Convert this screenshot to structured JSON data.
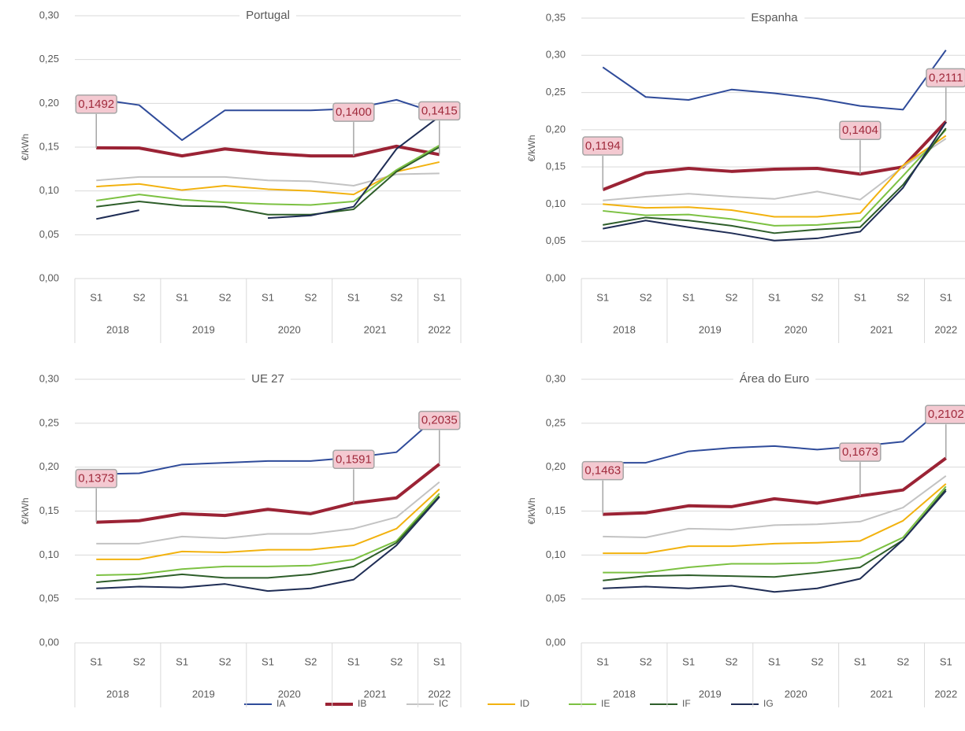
{
  "chart_data": [
    {
      "type": "line",
      "title": "Portugal",
      "y_label": "€/kWh",
      "categories": [
        "S1",
        "S2",
        "S1",
        "S2",
        "S1",
        "S2",
        "S1",
        "S2",
        "S1"
      ],
      "category_groups": [
        {
          "label": "2018",
          "count": 2
        },
        {
          "label": "2019",
          "count": 2
        },
        {
          "label": "2020",
          "count": 2
        },
        {
          "label": "2021",
          "count": 2
        },
        {
          "label": "2022",
          "count": 1
        }
      ],
      "ylim": [
        0,
        0.3
      ],
      "yticks": [
        {
          "value": 0,
          "label": "0,00"
        },
        {
          "value": 0.05,
          "label": "0,05"
        },
        {
          "value": 0.1,
          "label": "0,10"
        },
        {
          "value": 0.15,
          "label": "0,15"
        },
        {
          "value": 0.2,
          "label": "0,20"
        },
        {
          "value": 0.25,
          "label": "0,25"
        },
        {
          "value": 0.3,
          "label": "0,30"
        }
      ],
      "grid": true,
      "legend": "bottom",
      "series": [
        {
          "name": "IA",
          "color": "#2f4b9a",
          "width": 2,
          "values": [
            0.205,
            0.198,
            0.158,
            0.192,
            0.192,
            0.192,
            0.194,
            0.204,
            0.188
          ]
        },
        {
          "name": "IB",
          "color": "#9b2335",
          "width": 4,
          "values": [
            0.1492,
            0.149,
            0.14,
            0.148,
            0.143,
            0.14,
            0.14,
            0.151,
            0.1415
          ],
          "value_labels": [
            "0,1492",
            null,
            null,
            null,
            null,
            null,
            "0,1400",
            null,
            "0,1415"
          ]
        },
        {
          "name": "IC",
          "color": "#c3c3c3",
          "width": 2,
          "values": [
            0.112,
            0.116,
            0.116,
            0.116,
            0.112,
            0.111,
            0.106,
            0.119,
            0.12
          ]
        },
        {
          "name": "ID",
          "color": "#f2b20f",
          "width": 2,
          "values": [
            0.105,
            0.108,
            0.101,
            0.106,
            0.102,
            0.1,
            0.096,
            0.122,
            0.133
          ]
        },
        {
          "name": "IE",
          "color": "#7cc142",
          "width": 2,
          "values": [
            0.089,
            0.096,
            0.09,
            0.087,
            0.085,
            0.084,
            0.088,
            0.124,
            0.152
          ]
        },
        {
          "name": "IF",
          "color": "#2e5e2a",
          "width": 2,
          "values": [
            0.082,
            0.088,
            0.083,
            0.082,
            0.073,
            0.073,
            0.079,
            0.122,
            0.15
          ]
        },
        {
          "name": "IG",
          "color": "#1f2d55",
          "width": 2,
          "values": [
            0.068,
            0.078,
            null,
            null,
            0.069,
            0.072,
            0.082,
            0.148,
            0.185
          ]
        }
      ]
    },
    {
      "type": "line",
      "title": "Espanha",
      "y_label": "€/kWh",
      "categories": [
        "S1",
        "S2",
        "S1",
        "S2",
        "S1",
        "S2",
        "S1",
        "S2",
        "S1"
      ],
      "category_groups": [
        {
          "label": "2018",
          "count": 2
        },
        {
          "label": "2019",
          "count": 2
        },
        {
          "label": "2020",
          "count": 2
        },
        {
          "label": "2021",
          "count": 2
        },
        {
          "label": "2022",
          "count": 1
        }
      ],
      "ylim": [
        0,
        0.35
      ],
      "yticks": [
        {
          "value": 0,
          "label": "0,00"
        },
        {
          "value": 0.05,
          "label": "0,05"
        },
        {
          "value": 0.1,
          "label": "0,10"
        },
        {
          "value": 0.15,
          "label": "0,15"
        },
        {
          "value": 0.2,
          "label": "0,20"
        },
        {
          "value": 0.25,
          "label": "0,25"
        },
        {
          "value": 0.3,
          "label": "0,30"
        },
        {
          "value": 0.35,
          "label": "0,35"
        }
      ],
      "grid": true,
      "series": [
        {
          "name": "IA",
          "color": "#2f4b9a",
          "width": 2,
          "values": [
            0.284,
            0.244,
            0.24,
            0.254,
            0.249,
            0.242,
            0.232,
            0.227,
            0.307
          ]
        },
        {
          "name": "IB",
          "color": "#9b2335",
          "width": 4,
          "values": [
            0.1194,
            0.142,
            0.148,
            0.144,
            0.147,
            0.148,
            0.1404,
            0.15,
            0.2111
          ],
          "value_labels": [
            "0,1194",
            null,
            null,
            null,
            null,
            null,
            "0,1404",
            null,
            "0,2111"
          ]
        },
        {
          "name": "IC",
          "color": "#c3c3c3",
          "width": 2,
          "values": [
            0.105,
            0.11,
            0.114,
            0.11,
            0.107,
            0.117,
            0.106,
            0.15,
            0.188
          ]
        },
        {
          "name": "ID",
          "color": "#f2b20f",
          "width": 2,
          "values": [
            0.1,
            0.095,
            0.096,
            0.092,
            0.083,
            0.083,
            0.088,
            0.152,
            0.192
          ]
        },
        {
          "name": "IE",
          "color": "#7cc142",
          "width": 2,
          "values": [
            0.091,
            0.085,
            0.086,
            0.08,
            0.071,
            0.072,
            0.077,
            0.138,
            0.2
          ]
        },
        {
          "name": "IF",
          "color": "#2e5e2a",
          "width": 2,
          "values": [
            0.072,
            0.082,
            0.078,
            0.071,
            0.061,
            0.066,
            0.069,
            0.126,
            0.202
          ]
        },
        {
          "name": "IG",
          "color": "#1f2d55",
          "width": 2,
          "values": [
            0.067,
            0.078,
            0.069,
            0.061,
            0.051,
            0.054,
            0.063,
            0.122,
            0.21
          ]
        }
      ]
    },
    {
      "type": "line",
      "title": "UE 27",
      "y_label": "€/kWh",
      "categories": [
        "S1",
        "S2",
        "S1",
        "S2",
        "S1",
        "S2",
        "S1",
        "S2",
        "S1"
      ],
      "category_groups": [
        {
          "label": "2018",
          "count": 2
        },
        {
          "label": "2019",
          "count": 2
        },
        {
          "label": "2020",
          "count": 2
        },
        {
          "label": "2021",
          "count": 2
        },
        {
          "label": "2022",
          "count": 1
        }
      ],
      "ylim": [
        0,
        0.3
      ],
      "yticks": [
        {
          "value": 0,
          "label": "0,00"
        },
        {
          "value": 0.05,
          "label": "0,05"
        },
        {
          "value": 0.1,
          "label": "0,10"
        },
        {
          "value": 0.15,
          "label": "0,15"
        },
        {
          "value": 0.2,
          "label": "0,20"
        },
        {
          "value": 0.25,
          "label": "0,25"
        },
        {
          "value": 0.3,
          "label": "0,30"
        }
      ],
      "grid": true,
      "series": [
        {
          "name": "IA",
          "color": "#2f4b9a",
          "width": 2,
          "values": [
            0.192,
            0.193,
            0.203,
            0.205,
            0.207,
            0.207,
            0.211,
            0.217,
            0.26
          ]
        },
        {
          "name": "IB",
          "color": "#9b2335",
          "width": 4,
          "values": [
            0.1373,
            0.139,
            0.147,
            0.145,
            0.152,
            0.147,
            0.1591,
            0.165,
            0.2035
          ],
          "value_labels": [
            "0,1373",
            null,
            null,
            null,
            null,
            null,
            "0,1591",
            null,
            "0,2035"
          ]
        },
        {
          "name": "IC",
          "color": "#c3c3c3",
          "width": 2,
          "values": [
            0.113,
            0.113,
            0.121,
            0.119,
            0.124,
            0.124,
            0.13,
            0.143,
            0.183
          ]
        },
        {
          "name": "ID",
          "color": "#f2b20f",
          "width": 2,
          "values": [
            0.095,
            0.095,
            0.104,
            0.103,
            0.106,
            0.106,
            0.111,
            0.13,
            0.175
          ]
        },
        {
          "name": "IE",
          "color": "#7cc142",
          "width": 2,
          "values": [
            0.077,
            0.078,
            0.084,
            0.087,
            0.087,
            0.088,
            0.095,
            0.116,
            0.17
          ]
        },
        {
          "name": "IF",
          "color": "#2e5e2a",
          "width": 2,
          "values": [
            0.069,
            0.073,
            0.078,
            0.074,
            0.074,
            0.078,
            0.087,
            0.114,
            0.167
          ]
        },
        {
          "name": "IG",
          "color": "#1f2d55",
          "width": 2,
          "values": [
            0.062,
            0.064,
            0.063,
            0.067,
            0.059,
            0.062,
            0.072,
            0.111,
            0.166
          ]
        }
      ]
    },
    {
      "type": "line",
      "title": "Área do Euro",
      "y_label": "€/kWh",
      "categories": [
        "S1",
        "S2",
        "S1",
        "S2",
        "S1",
        "S2",
        "S1",
        "S2",
        "S1"
      ],
      "category_groups": [
        {
          "label": "2018",
          "count": 2
        },
        {
          "label": "2019",
          "count": 2
        },
        {
          "label": "2020",
          "count": 2
        },
        {
          "label": "2021",
          "count": 2
        },
        {
          "label": "2022",
          "count": 1
        }
      ],
      "ylim": [
        0,
        0.3
      ],
      "yticks": [
        {
          "value": 0,
          "label": "0,00"
        },
        {
          "value": 0.05,
          "label": "0,05"
        },
        {
          "value": 0.1,
          "label": "0,10"
        },
        {
          "value": 0.15,
          "label": "0,15"
        },
        {
          "value": 0.2,
          "label": "0,20"
        },
        {
          "value": 0.25,
          "label": "0,25"
        },
        {
          "value": 0.3,
          "label": "0,30"
        }
      ],
      "grid": true,
      "series": [
        {
          "name": "IA",
          "color": "#2f4b9a",
          "width": 2,
          "values": [
            0.205,
            0.205,
            0.218,
            0.222,
            0.224,
            0.22,
            0.224,
            0.229,
            0.27
          ]
        },
        {
          "name": "IB",
          "color": "#9b2335",
          "width": 4,
          "values": [
            0.1463,
            0.148,
            0.156,
            0.155,
            0.164,
            0.159,
            0.1673,
            0.174,
            0.2102
          ],
          "value_labels": [
            "0,1463",
            null,
            null,
            null,
            null,
            null,
            "0,1673",
            null,
            "0,2102"
          ]
        },
        {
          "name": "IC",
          "color": "#c3c3c3",
          "width": 2,
          "values": [
            0.121,
            0.12,
            0.13,
            0.129,
            0.134,
            0.135,
            0.138,
            0.154,
            0.19
          ]
        },
        {
          "name": "ID",
          "color": "#f2b20f",
          "width": 2,
          "values": [
            0.102,
            0.102,
            0.11,
            0.11,
            0.113,
            0.114,
            0.116,
            0.139,
            0.181
          ]
        },
        {
          "name": "IE",
          "color": "#7cc142",
          "width": 2,
          "values": [
            0.08,
            0.08,
            0.086,
            0.09,
            0.09,
            0.091,
            0.097,
            0.12,
            0.178
          ]
        },
        {
          "name": "IF",
          "color": "#2e5e2a",
          "width": 2,
          "values": [
            0.071,
            0.076,
            0.077,
            0.076,
            0.075,
            0.08,
            0.086,
            0.117,
            0.175
          ]
        },
        {
          "name": "IG",
          "color": "#1f2d55",
          "width": 2,
          "values": [
            0.062,
            0.064,
            0.062,
            0.065,
            0.058,
            0.062,
            0.073,
            0.117,
            0.173
          ]
        }
      ]
    }
  ]
}
